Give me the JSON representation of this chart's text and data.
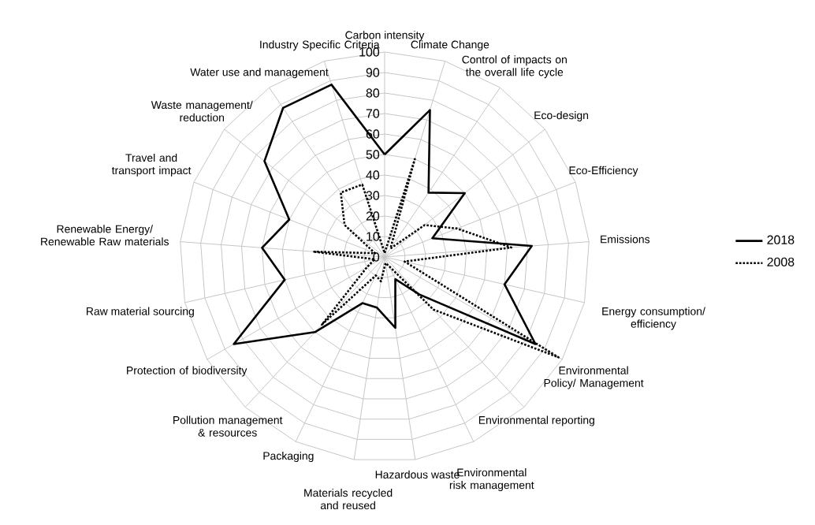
{
  "chart_data": {
    "type": "radar",
    "categories": [
      "Carbon intensity",
      "Climate Change",
      "Control of impacts on the overall life cycle",
      "Eco-design",
      "Eco-Efficiency",
      "Emissions",
      "Energy consumption/ efficiency",
      "Environmental Policy/ Management",
      "Environmental reporting",
      "Environmental risk management",
      "Hazardous waste",
      "Materials recycled and reused",
      "Packaging",
      "Pollution management & resources",
      "Protection of biodiversity",
      "Raw material sourcing",
      "Renewable Energy/ Renewable Raw materials",
      "Travel and transport impact",
      "Waste management/ reduction",
      "Water use and management",
      "Industry Specific Criteria"
    ],
    "series": [
      {
        "name": "2018",
        "color": "#000000",
        "line_style": "solid",
        "values": [
          50,
          75,
          38,
          50,
          25,
          72,
          60,
          85,
          25,
          12,
          35,
          25,
          25,
          50,
          85,
          50,
          60,
          50,
          75,
          88,
          88
        ]
      },
      {
        "name": "2008",
        "color": "#000000",
        "line_style": "dotted",
        "values": [
          2,
          50,
          5,
          25,
          38,
          62,
          10,
          98,
          35,
          5,
          3,
          12,
          10,
          45,
          10,
          5,
          35,
          5,
          25,
          38,
          37
        ]
      }
    ],
    "ylim": [
      0,
      100
    ],
    "yticks": [
      0,
      10,
      20,
      30,
      40,
      50,
      60,
      70,
      80,
      90,
      100
    ],
    "grid": true,
    "legend": "right"
  }
}
